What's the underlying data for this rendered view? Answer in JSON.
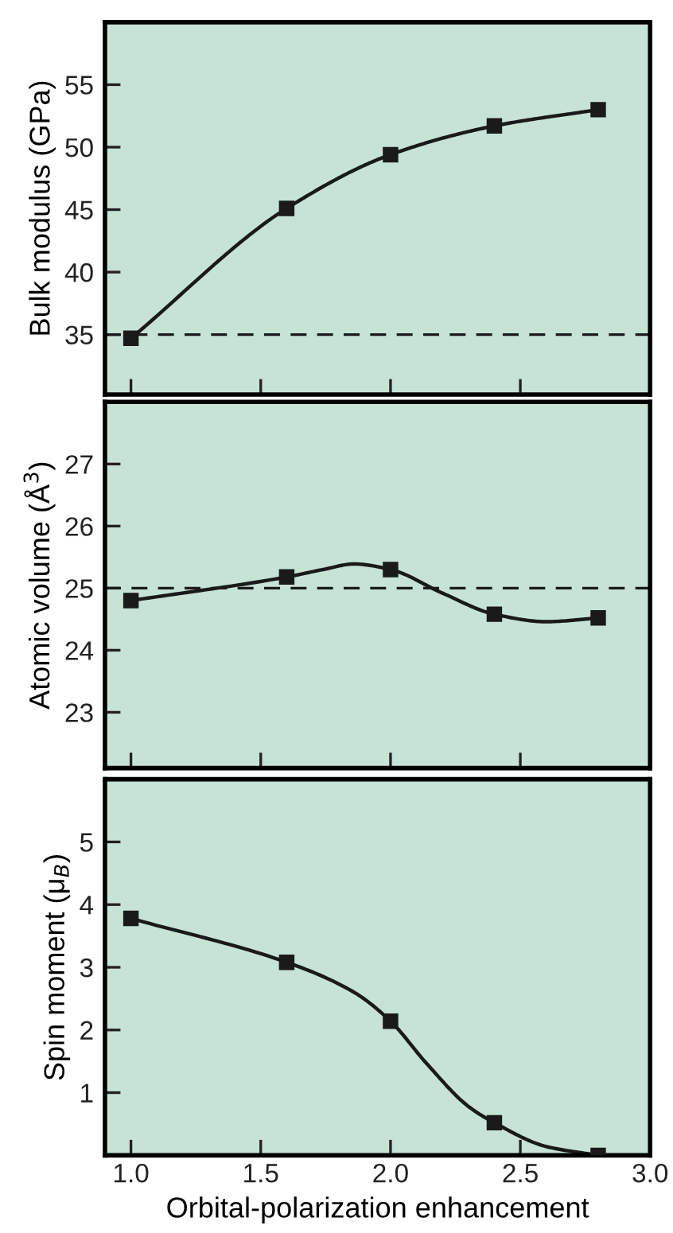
{
  "chart_data": [
    {
      "type": "line",
      "ylabel": "Bulk modulus (GPa)",
      "x": [
        1.0,
        1.6,
        2.0,
        2.4,
        2.8
      ],
      "xlim": [
        0.9,
        3.0
      ],
      "xticks": [
        1.0,
        1.5,
        2.0,
        2.5,
        3.0
      ],
      "ylim": [
        30.2,
        60
      ],
      "yticks": [
        35,
        40,
        45,
        50,
        55
      ],
      "tick_labels": "y",
      "marker": "square",
      "grid": false,
      "legend": false,
      "series": [
        {
          "color": "#1a1a1a",
          "values": [
            34.7,
            45.1,
            49.4,
            51.7,
            53.0
          ]
        }
      ],
      "ref_lines": [
        {
          "axis": "y",
          "value": 35,
          "line_style": "dashed",
          "color": "#1a1a1a"
        }
      ]
    },
    {
      "type": "line",
      "ylabel": "Atomic volume (Å$^{3}$)",
      "x": [
        1.0,
        1.6,
        2.0,
        2.4,
        2.8
      ],
      "xlim": [
        0.9,
        3.0
      ],
      "xticks": [
        1.0,
        1.5,
        2.0,
        2.5,
        3.0
      ],
      "ylim": [
        22.1,
        28
      ],
      "yticks": [
        23,
        24,
        25,
        26,
        27
      ],
      "tick_labels": "y",
      "grid": false,
      "legend": false,
      "series": [
        {
          "color": "#1a1a1a",
          "marker": "none",
          "x": [
            1.0,
            1.6,
            1.74,
            1.86,
            2.0,
            2.2,
            2.4,
            2.6,
            2.8
          ],
          "values": [
            24.8,
            25.18,
            25.3,
            25.39,
            25.3,
            24.92,
            24.58,
            24.46,
            24.52
          ]
        },
        {
          "type": "scatter",
          "color": "#1a1a1a",
          "marker": "square",
          "values": [
            24.8,
            25.18,
            25.3,
            24.58,
            24.52
          ]
        }
      ],
      "ref_lines": [
        {
          "axis": "y",
          "value": 25,
          "line_style": "dashed",
          "color": "#1a1a1a"
        }
      ]
    },
    {
      "type": "line",
      "ylabel": "Spin moment (μ$_{B}$)",
      "xlabel": "Orbital-polarization enhancement",
      "x": [
        1.0,
        1.6,
        2.0,
        2.4,
        2.8
      ],
      "xlim": [
        0.9,
        3.0
      ],
      "xticks": [
        {
          "value": 1.0,
          "label": "1.0"
        },
        {
          "value": 1.5,
          "label": "1.5"
        },
        {
          "value": 2.0,
          "label": "2.0"
        },
        {
          "value": 2.5,
          "label": "2.5"
        },
        {
          "value": 3.0,
          "label": "3.0"
        }
      ],
      "ylim": [
        0,
        6
      ],
      "yticks": [
        1,
        2,
        3,
        4,
        5
      ],
      "grid": false,
      "legend": false,
      "series": [
        {
          "color": "#1a1a1a",
          "marker": "none",
          "x": [
            1.0,
            1.6,
            1.86,
            2.0,
            2.14,
            2.3,
            2.4,
            2.6,
            2.8
          ],
          "values": [
            3.78,
            3.08,
            2.6,
            2.14,
            1.46,
            0.78,
            0.52,
            0.14,
            0.0
          ]
        },
        {
          "type": "scatter",
          "color": "#1a1a1a",
          "marker": "square",
          "values": [
            3.78,
            3.08,
            2.14,
            0.52,
            0.0
          ]
        }
      ]
    }
  ]
}
